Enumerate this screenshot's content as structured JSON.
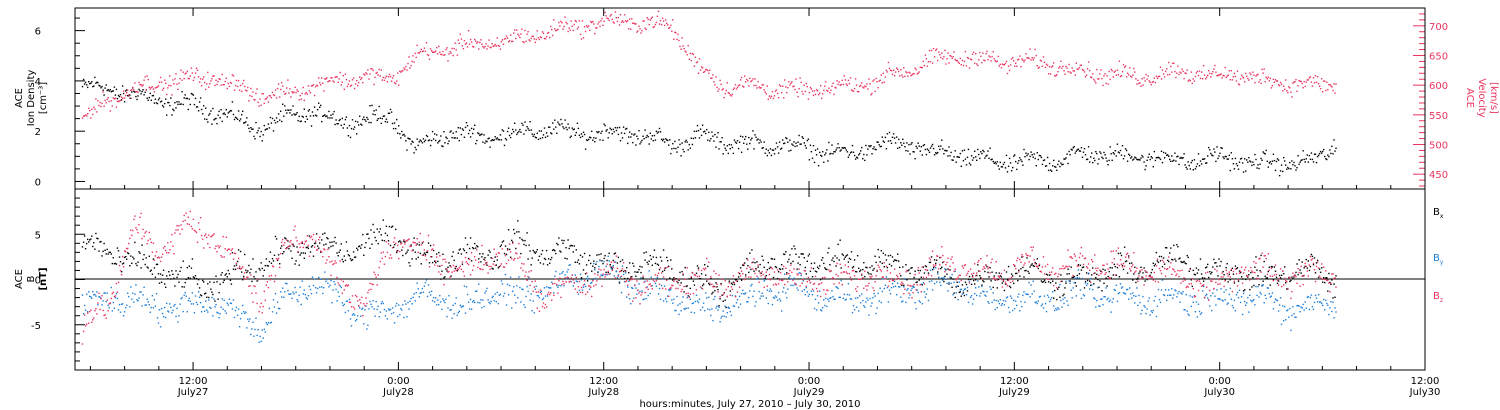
{
  "xlabel": "hours:minutes, July 27, 2010 – July 30, 2010",
  "x_ticks": [
    {
      "time": "12:00",
      "date": "July27",
      "h": 12
    },
    {
      "time": "0:00",
      "date": "July28",
      "h": 24
    },
    {
      "time": "12:00",
      "date": "July28",
      "h": 36
    },
    {
      "time": "0:00",
      "date": "July29",
      "h": 48
    },
    {
      "time": "12:00",
      "date": "July29",
      "h": 60
    },
    {
      "time": "0:00",
      "date": "July30",
      "h": 72
    },
    {
      "time": "12:00",
      "date": "July30",
      "h": 84
    }
  ],
  "colors": {
    "black": "#000000",
    "pink": "#e8365e",
    "blue": "#1f7fd8"
  },
  "chart_data": [
    {
      "type": "scatter",
      "panel": "top",
      "x_unit": "hours since 2010-07-27 00:00",
      "xlim": [
        5.1,
        84
      ],
      "ylabel_left": [
        "ACE",
        "Ion Density",
        "[cm⁻³]"
      ],
      "ylabel_right": [
        "ACE",
        "Velocity",
        "[km/s]"
      ],
      "ylim_left": [
        -0.3,
        6.9
      ],
      "ylim_right": [
        425,
        730
      ],
      "y_ticks_left": [
        0,
        2,
        4,
        6
      ],
      "y_ticks_right": [
        450,
        500,
        550,
        600,
        650,
        700
      ],
      "series": [
        {
          "axis": "left",
          "color": "black",
          "x": [
            5.5,
            7,
            8.5,
            10,
            11.5,
            13,
            14.5,
            16,
            17.5,
            19,
            20.5,
            22,
            23.5,
            25,
            26.5,
            28,
            29.5,
            31,
            32.5,
            34,
            35.5,
            37,
            38.5,
            40,
            41.5,
            43,
            44.5,
            46,
            47.5,
            49,
            50.5,
            52,
            53.5,
            55,
            56.5,
            58,
            59.5,
            61,
            62.5,
            64,
            65.5,
            67,
            68.5,
            70,
            71.5,
            73,
            74.5,
            76,
            77.5,
            78.8
          ],
          "y": [
            3.8,
            3.7,
            3.5,
            3.2,
            3.1,
            2.9,
            2.5,
            2.1,
            2.6,
            2.8,
            2.4,
            2.5,
            2.6,
            1.3,
            1.9,
            1.9,
            1.8,
            2.0,
            2.1,
            2.0,
            1.9,
            2.0,
            1.8,
            1.5,
            1.8,
            1.6,
            1.5,
            1.5,
            1.4,
            1.2,
            1.1,
            1.5,
            1.5,
            1.2,
            1.1,
            0.9,
            0.8,
            0.8,
            0.9,
            1.1,
            1.1,
            1.0,
            1.0,
            0.8,
            1.0,
            0.9,
            0.7,
            0.8,
            0.8,
            1.5
          ]
        },
        {
          "axis": "right",
          "color": "pink",
          "x": [
            5.5,
            7,
            8.5,
            10,
            11.5,
            13,
            14.5,
            16,
            17.5,
            19,
            20.5,
            22,
            23.5,
            25,
            26.5,
            28,
            29.5,
            31,
            32.5,
            34,
            35.5,
            37,
            38.5,
            40,
            41.5,
            43,
            44.5,
            46,
            47.5,
            49,
            50.5,
            52,
            53.5,
            55,
            56.5,
            58,
            59.5,
            61,
            62.5,
            64,
            65.5,
            67,
            68.5,
            70,
            71.5,
            73,
            74.5,
            76,
            77.5,
            78.8
          ],
          "y": [
            545,
            575,
            595,
            605,
            610,
            615,
            600,
            580,
            590,
            600,
            610,
            615,
            610,
            650,
            660,
            670,
            670,
            680,
            690,
            700,
            705,
            710,
            705,
            700,
            630,
            600,
            600,
            595,
            590,
            595,
            600,
            610,
            625,
            640,
            650,
            645,
            640,
            640,
            635,
            625,
            620,
            615,
            620,
            625,
            615,
            620,
            610,
            605,
            600,
            605
          ]
        }
      ]
    },
    {
      "type": "scatter",
      "panel": "bottom",
      "x_unit": "hours since 2010-07-27 00:00",
      "xlim": [
        5.1,
        84
      ],
      "ylabel_left": [
        "ACE",
        "B",
        "[nT]"
      ],
      "ylim": [
        -10,
        10
      ],
      "y_ticks": [
        -5,
        0,
        5
      ],
      "zero_line": true,
      "series": [
        {
          "name": "Bx",
          "color": "black",
          "x": [
            5.5,
            7,
            8.5,
            10,
            11.5,
            13,
            14.5,
            16,
            17.5,
            19,
            20.5,
            22,
            23.5,
            25,
            26.5,
            28,
            29.5,
            31,
            32.5,
            34,
            35.5,
            37,
            38.5,
            40,
            41.5,
            43,
            44.5,
            46,
            47.5,
            49,
            50.5,
            52,
            53.5,
            55,
            56.5,
            58,
            59.5,
            61,
            62.5,
            64,
            65.5,
            67,
            68.5,
            70,
            71.5,
            73,
            74.5,
            76,
            77.5,
            78.8
          ],
          "y": [
            4,
            3,
            2,
            1,
            0,
            -1,
            1,
            2,
            3,
            4,
            3,
            4,
            5,
            3,
            2,
            3,
            3,
            4,
            3,
            3,
            2,
            1,
            2,
            1,
            0,
            -1,
            1,
            2,
            2,
            2,
            2,
            2,
            1,
            1,
            0,
            0,
            1,
            1,
            0,
            0,
            1,
            1,
            2,
            2,
            1,
            1,
            0,
            1,
            1,
            0
          ]
        },
        {
          "name": "By",
          "color": "blue",
          "x": [
            5.5,
            7,
            8.5,
            10,
            11.5,
            13,
            14.5,
            16,
            17.5,
            19,
            20.5,
            22,
            23.5,
            25,
            26.5,
            28,
            29.5,
            31,
            32.5,
            34,
            35.5,
            37,
            38.5,
            40,
            41.5,
            43,
            44.5,
            46,
            47.5,
            49,
            50.5,
            52,
            53.5,
            55,
            56.5,
            58,
            59.5,
            61,
            62.5,
            64,
            65.5,
            67,
            68.5,
            70,
            71.5,
            73,
            74.5,
            76,
            77.5,
            78.8
          ],
          "y": [
            -3,
            -2,
            -2,
            -3,
            -3,
            -2,
            -4,
            -5,
            -2,
            0,
            -2,
            -4,
            -3,
            -2,
            -2,
            -3,
            -1,
            -2,
            -1,
            0,
            1,
            0,
            -1,
            -2,
            -3,
            -3,
            -2,
            -1,
            -1,
            -2,
            -2,
            -2,
            -1,
            -1,
            0,
            -2,
            -2,
            -2,
            -2,
            -1,
            -2,
            -2,
            -2,
            -2,
            -2,
            -2,
            -2,
            -3,
            -3,
            -2
          ]
        },
        {
          "name": "Bz",
          "color": "pink",
          "x": [
            5.5,
            7,
            8.5,
            10,
            11.5,
            13,
            14.5,
            16,
            17.5,
            19,
            20.5,
            22,
            23.5,
            25,
            26.5,
            28,
            29.5,
            31,
            32.5,
            34,
            35.5,
            37,
            38.5,
            40,
            41.5,
            43,
            44.5,
            46,
            47.5,
            49,
            50.5,
            52,
            53.5,
            55,
            56.5,
            58,
            59.5,
            61,
            62.5,
            64,
            65.5,
            67,
            68.5,
            70,
            71.5,
            73,
            74.5,
            76,
            77.5,
            78.8
          ],
          "y": [
            -5,
            -3,
            6,
            3,
            6,
            5,
            2,
            -2,
            4,
            5,
            0,
            -3,
            4,
            4,
            2,
            1,
            3,
            2,
            -2,
            0,
            0,
            1,
            -1,
            0,
            0,
            0,
            0,
            1,
            0,
            0,
            0,
            1,
            0,
            1,
            2,
            1,
            1,
            2,
            1,
            2,
            2,
            1,
            1,
            0,
            -1,
            1,
            1,
            0,
            1,
            1
          ]
        }
      ],
      "legend": [
        {
          "base": "B",
          "sub": "x",
          "color": "black"
        },
        {
          "base": "B",
          "sub": "y",
          "color": "blue"
        },
        {
          "base": "B",
          "sub": "z",
          "color": "pink"
        }
      ]
    }
  ]
}
